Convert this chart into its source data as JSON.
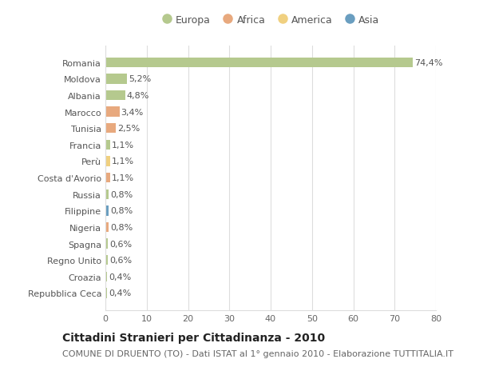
{
  "countries": [
    "Romania",
    "Moldova",
    "Albania",
    "Marocco",
    "Tunisia",
    "Francia",
    "Perù",
    "Costa d'Avorio",
    "Russia",
    "Filippine",
    "Nigeria",
    "Spagna",
    "Regno Unito",
    "Croazia",
    "Repubblica Ceca"
  ],
  "values": [
    74.4,
    5.2,
    4.8,
    3.4,
    2.5,
    1.1,
    1.1,
    1.1,
    0.8,
    0.8,
    0.8,
    0.6,
    0.6,
    0.4,
    0.4
  ],
  "labels": [
    "74,4%",
    "5,2%",
    "4,8%",
    "3,4%",
    "2,5%",
    "1,1%",
    "1,1%",
    "1,1%",
    "0,8%",
    "0,8%",
    "0,8%",
    "0,6%",
    "0,6%",
    "0,4%",
    "0,4%"
  ],
  "continents": [
    "Europa",
    "Europa",
    "Europa",
    "Africa",
    "Africa",
    "Europa",
    "America",
    "Africa",
    "Europa",
    "Asia",
    "Africa",
    "Europa",
    "Europa",
    "Europa",
    "Europa"
  ],
  "continent_colors": {
    "Europa": "#b5c98e",
    "Africa": "#e8a97e",
    "America": "#f0d080",
    "Asia": "#6a9ec0"
  },
  "legend_order": [
    "Europa",
    "Africa",
    "America",
    "Asia"
  ],
  "xlim": [
    0,
    80
  ],
  "xticks": [
    0,
    10,
    20,
    30,
    40,
    50,
    60,
    70,
    80
  ],
  "title": "Cittadini Stranieri per Cittadinanza - 2010",
  "subtitle": "COMUNE DI DRUENTO (TO) - Dati ISTAT al 1° gennaio 2010 - Elaborazione TUTTITALIA.IT",
  "bg_color": "#ffffff",
  "grid_color": "#dddddd",
  "bar_height": 0.6,
  "title_fontsize": 10,
  "subtitle_fontsize": 8,
  "label_fontsize": 8,
  "tick_fontsize": 8,
  "legend_fontsize": 9
}
